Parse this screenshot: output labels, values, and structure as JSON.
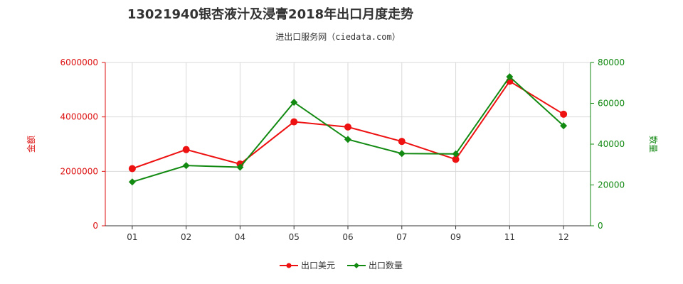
{
  "chart_data": {
    "type": "line",
    "title": "13021940银杏液汁及浸膏2018年出口月度走势",
    "subtitle": "进出口服务网（ciedata.com）",
    "categories": [
      "01",
      "02",
      "04",
      "05",
      "06",
      "07",
      "09",
      "11",
      "12"
    ],
    "y_left": {
      "label": "金额",
      "ticks": [
        "0",
        "2000000",
        "4000000",
        "6000000"
      ],
      "range": [
        0,
        6000000
      ],
      "color": "#dd1111"
    },
    "y_right": {
      "label": "数量",
      "ticks": [
        "0",
        "20000",
        "40000",
        "60000",
        "80000"
      ],
      "range": [
        0,
        80000
      ],
      "color": "#118811"
    },
    "series": [
      {
        "name": "出口美元",
        "axis": "left",
        "color": "#ee1111",
        "values": [
          2100000,
          2800000,
          2270000,
          3820000,
          3630000,
          3100000,
          2440000,
          5310000,
          4100000
        ]
      },
      {
        "name": "出口数量",
        "axis": "right",
        "color": "#128a12",
        "values": [
          21500,
          29500,
          28700,
          60500,
          42300,
          35400,
          35200,
          73000,
          49000
        ]
      }
    ],
    "grid": true,
    "legend_position": "bottom"
  }
}
